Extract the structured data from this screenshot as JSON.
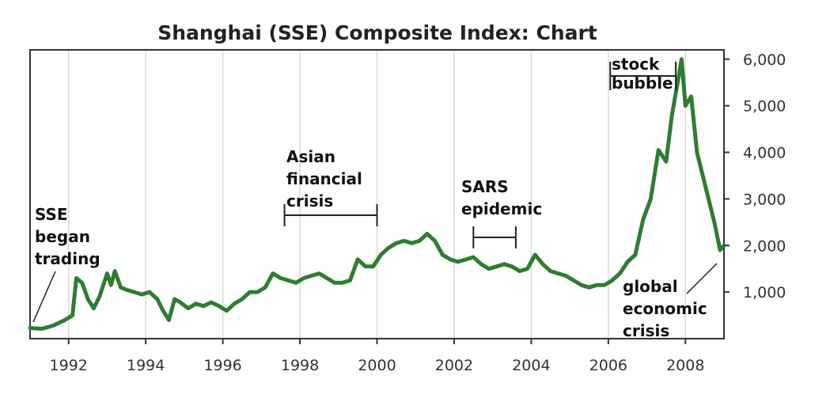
{
  "chart_data": {
    "type": "line",
    "title": "Shanghai (SSE) Composite Index: Chart",
    "xlabel": "",
    "ylabel": "",
    "xlim": [
      1991.0,
      2009.0
    ],
    "ylim": [
      0,
      6200
    ],
    "x_ticks": [
      1992,
      1994,
      1996,
      1998,
      2000,
      2002,
      2004,
      2006,
      2008
    ],
    "x_tick_labels": [
      "1992",
      "1994",
      "1996",
      "1998",
      "2000",
      "2002",
      "2004",
      "2006",
      "2008"
    ],
    "y_ticks": [
      1000,
      2000,
      3000,
      4000,
      5000,
      6000
    ],
    "y_tick_labels": [
      "1,000",
      "2,000",
      "3,000",
      "4,000",
      "5,000",
      "6,000"
    ],
    "y_axis_side": "right",
    "grid": "vertical",
    "line_color": "#2e7d32",
    "series": [
      {
        "x": [
          1991.0,
          1991.3,
          1991.6,
          1991.9,
          1992.1,
          1992.2,
          1992.35,
          1992.5,
          1992.65,
          1992.8,
          1993.0,
          1993.1,
          1993.2,
          1993.35,
          1993.5,
          1993.7,
          1993.9,
          1994.1,
          1994.3,
          1994.45,
          1994.6,
          1994.75,
          1994.9,
          1995.1,
          1995.3,
          1995.5,
          1995.7,
          1995.9,
          1996.1,
          1996.3,
          1996.5,
          1996.7,
          1996.9,
          1997.1,
          1997.3,
          1997.5,
          1997.7,
          1997.9,
          1998.1,
          1998.3,
          1998.5,
          1998.7,
          1998.9,
          1999.1,
          1999.3,
          1999.5,
          1999.7,
          1999.9,
          2000.1,
          2000.3,
          2000.5,
          2000.7,
          2000.9,
          2001.1,
          2001.3,
          2001.5,
          2001.7,
          2001.9,
          2002.1,
          2002.3,
          2002.5,
          2002.7,
          2002.9,
          2003.1,
          2003.3,
          2003.5,
          2003.7,
          2003.9,
          2004.1,
          2004.3,
          2004.5,
          2004.7,
          2004.9,
          2005.1,
          2005.3,
          2005.5,
          2005.7,
          2005.9,
          2006.1,
          2006.3,
          2006.5,
          2006.7,
          2006.9,
          2007.1,
          2007.3,
          2007.5,
          2007.65,
          2007.8,
          2007.9,
          2008.0,
          2008.15,
          2008.3,
          2008.45,
          2008.6,
          2008.75,
          2008.9,
          2009.0
        ],
        "values": [
          230,
          210,
          280,
          400,
          500,
          1300,
          1200,
          850,
          650,
          900,
          1400,
          1150,
          1450,
          1100,
          1050,
          1000,
          950,
          1000,
          850,
          600,
          400,
          850,
          780,
          650,
          750,
          700,
          780,
          700,
          600,
          750,
          850,
          1000,
          1000,
          1100,
          1400,
          1300,
          1250,
          1200,
          1300,
          1350,
          1400,
          1300,
          1200,
          1200,
          1250,
          1700,
          1550,
          1550,
          1800,
          1950,
          2050,
          2100,
          2050,
          2100,
          2250,
          2100,
          1800,
          1700,
          1650,
          1700,
          1750,
          1600,
          1500,
          1550,
          1600,
          1550,
          1450,
          1500,
          1800,
          1600,
          1450,
          1400,
          1350,
          1250,
          1150,
          1100,
          1150,
          1150,
          1250,
          1400,
          1650,
          1800,
          2550,
          3000,
          4050,
          3800,
          4800,
          5500,
          6000,
          5000,
          5200,
          4000,
          3500,
          3000,
          2500,
          1900,
          2000
        ]
      }
    ],
    "annotations": [
      {
        "label_lines": [
          "SSE",
          "began",
          "trading"
        ]
      },
      {
        "label_lines": [
          "Asian",
          "financial",
          "crisis"
        ],
        "span": [
          1997.6,
          2000.0
        ]
      },
      {
        "label_lines": [
          "SARS",
          "epidemic"
        ],
        "span": [
          2002.5,
          2003.6
        ]
      },
      {
        "label_lines": [
          "stock",
          "bubble"
        ],
        "span": [
          2006.05,
          2007.75
        ]
      },
      {
        "label_lines": [
          "global",
          "economic",
          "crisis"
        ]
      }
    ]
  }
}
